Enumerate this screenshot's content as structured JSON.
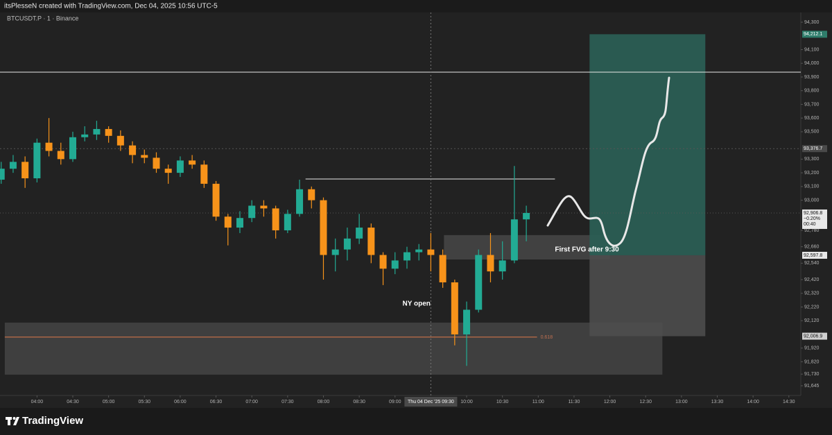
{
  "header": "itsPlesseN created with TradingView.com, Dec 04, 2025 10:56 UTC-5",
  "brand": "TradingView",
  "chart_data": {
    "type": "candlestick",
    "symbol": "BTCUSDT.P · 1 · Binance",
    "x": [
      "03:30",
      "03:40",
      "03:50",
      "04:00",
      "04:10",
      "04:20",
      "04:30",
      "04:40",
      "04:50",
      "05:00",
      "05:10",
      "05:20",
      "05:30",
      "05:40",
      "05:50",
      "06:00",
      "06:10",
      "06:20",
      "06:30",
      "06:40",
      "06:50",
      "07:00",
      "07:10",
      "07:20",
      "07:30",
      "07:40",
      "07:50",
      "08:00",
      "08:10",
      "08:20",
      "08:30",
      "08:40",
      "08:50",
      "09:00",
      "09:10",
      "09:20",
      "09:30",
      "09:40",
      "09:50",
      "10:00",
      "10:10",
      "10:20",
      "10:30",
      "10:40",
      "10:50"
    ],
    "open": [
      93150,
      93230,
      93280,
      93160,
      93420,
      93360,
      93300,
      93460,
      93480,
      93520,
      93470,
      93400,
      93330,
      93310,
      93230,
      93200,
      93290,
      93260,
      93120,
      92880,
      92800,
      92870,
      92960,
      92940,
      92780,
      92900,
      93080,
      93000,
      92600,
      92640,
      92720,
      92800,
      92600,
      92500,
      92560,
      92620,
      92640,
      92600,
      92400,
      92020,
      92200,
      92600,
      92480,
      92560,
      92860
    ],
    "high": [
      93280,
      93330,
      93320,
      93450,
      93600,
      93420,
      93500,
      93540,
      93580,
      93540,
      93510,
      93430,
      93370,
      93350,
      93260,
      93320,
      93330,
      93290,
      93140,
      92900,
      92920,
      93000,
      93000,
      92960,
      92930,
      93150,
      93100,
      93020,
      92720,
      92800,
      92900,
      92830,
      92620,
      92620,
      92660,
      92680,
      92760,
      92640,
      92420,
      92260,
      92640,
      92760,
      92700,
      93250,
      92960
    ],
    "low": [
      93120,
      93200,
      93090,
      93130,
      93320,
      93260,
      93280,
      93430,
      93440,
      93420,
      93360,
      93270,
      93270,
      93200,
      93120,
      93170,
      93230,
      93090,
      92850,
      92670,
      92760,
      92840,
      92880,
      92720,
      92760,
      92880,
      92940,
      92420,
      92480,
      92560,
      92680,
      92540,
      92380,
      92460,
      92500,
      92560,
      92480,
      92360,
      91940,
      91790,
      92180,
      92400,
      92420,
      92540,
      92700
    ],
    "close": [
      93230,
      93280,
      93160,
      93420,
      93360,
      93300,
      93460,
      93480,
      93520,
      93470,
      93400,
      93330,
      93310,
      93230,
      93200,
      93290,
      93260,
      93120,
      92880,
      92800,
      92870,
      92960,
      92940,
      92780,
      92900,
      93080,
      93000,
      92600,
      92640,
      92720,
      92800,
      92600,
      92500,
      92560,
      92620,
      92640,
      92600,
      92400,
      92020,
      92200,
      92600,
      92480,
      92560,
      92860,
      92906.8
    ],
    "up_color": "#22ab94",
    "down_color": "#f7931a",
    "xlim": [
      "03:29",
      "14:40"
    ],
    "xticks": [
      "04:00",
      "04:30",
      "05:00",
      "05:30",
      "06:00",
      "06:30",
      "07:00",
      "07:30",
      "08:00",
      "08:30",
      "09:00",
      "10:00",
      "10:30",
      "11:00",
      "11:30",
      "12:00",
      "12:30",
      "13:00",
      "13:30",
      "14:00",
      "14:30"
    ],
    "ylim": [
      91574,
      94371
    ],
    "yticks": [
      {
        "value": 94300,
        "label": "94,300"
      },
      {
        "value": 94100,
        "label": "94,100"
      },
      {
        "value": 94000,
        "label": "94,000"
      },
      {
        "value": 93900,
        "label": "93,900"
      },
      {
        "value": 93800,
        "label": "93,800"
      },
      {
        "value": 93700,
        "label": "93,700"
      },
      {
        "value": 93600,
        "label": "93,600"
      },
      {
        "value": 93500,
        "label": "93,500"
      },
      {
        "value": 93300,
        "label": "93,300"
      },
      {
        "value": 93200,
        "label": "93,200"
      },
      {
        "value": 93100,
        "label": "93,100"
      },
      {
        "value": 93000,
        "label": "93,000"
      },
      {
        "value": 92780,
        "label": "92,780"
      },
      {
        "value": 92660,
        "label": "92,660"
      },
      {
        "value": 92540,
        "label": "92,540"
      },
      {
        "value": 92420,
        "label": "92,420"
      },
      {
        "value": 92320,
        "label": "92,320"
      },
      {
        "value": 92220,
        "label": "92,220"
      },
      {
        "value": 92120,
        "label": "92,120"
      },
      {
        "value": 91920,
        "label": "91,920"
      },
      {
        "value": 91820,
        "label": "91,820"
      },
      {
        "value": 91730,
        "label": "91,730"
      },
      {
        "value": 91645,
        "label": "91,645"
      }
    ],
    "crosshair": {
      "time": "09:30",
      "time_label": "Thu 04 Dec '25   09:30",
      "price": {
        "value": 93376.7,
        "label": "93,376.7"
      }
    },
    "current_price": {
      "value": 92906.8,
      "label": "92,906.8",
      "change": "−0.20%",
      "countdown": "00:40"
    },
    "drawings": {
      "resistance_line": {
        "price": 93935
      },
      "swing_high_line": {
        "price": 93155,
        "start": "07:45",
        "end": "11:14"
      },
      "fib_zone": {
        "top": 92106,
        "bottom": 91726,
        "start": "03:33",
        "end": "12:44",
        "level": {
          "price": 92000,
          "end": "10:59",
          "label": "0.618"
        }
      },
      "fvg_zone": {
        "top": 92745,
        "bottom": 92567,
        "start": "09:41",
        "end": "12:00"
      },
      "annotations": [
        {
          "text": "First FVG after 9:30",
          "time": "11:14",
          "price": 92638
        },
        {
          "text": "NY open",
          "time": "09:18",
          "price": 92243
        }
      ],
      "position": {
        "start": "11:43",
        "end": "13:20",
        "target": {
          "value": 94212.1,
          "label": "94,212.1"
        },
        "entry": {
          "value": 92597.8,
          "label": "92,597.8"
        },
        "stop": {
          "value": 92006.9,
          "label": "92,006.9"
        }
      }
    }
  }
}
